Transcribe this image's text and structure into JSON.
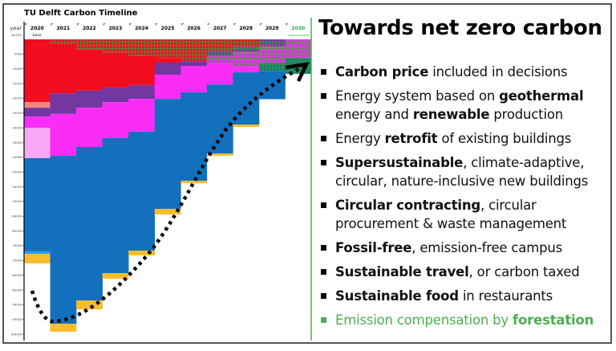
{
  "chart_data": {
    "type": "bar",
    "stacked": true,
    "title": "TU Delft Carbon Timeline",
    "row_labels": {
      "year": "year",
      "source": "source"
    },
    "categories": [
      "2020",
      "2021",
      "2022",
      "2023",
      "2024",
      "2025",
      "2026",
      "2027",
      "2028",
      "2029",
      "2030"
    ],
    "category_colors": [
      "#000000",
      "#000000",
      "#000000",
      "#000000",
      "#000000",
      "#000000",
      "#000000",
      "#000000",
      "#000000",
      "#000000",
      "#2ea84a"
    ],
    "annotations": [
      {
        "category": "2020",
        "text": "base"
      },
      {
        "category": "2030",
        "text": "carbon neutral",
        "color": "#2ea84a"
      }
    ],
    "y_axis": {
      "inverted": true,
      "ylim": [
        0,
        100000
      ],
      "ticks": [
        5000,
        10000,
        15000,
        20000,
        25000,
        30000,
        35000,
        40000,
        45000,
        50000,
        55000,
        60000,
        65000,
        70000,
        75000,
        80000,
        85000,
        90000,
        95000,
        100000
      ]
    },
    "grid": false,
    "series": [
      {
        "color": "#f01020",
        "hatched": true,
        "values": [
          0,
          1600,
          3500,
          4400,
          5500,
          6300,
          7400,
          3800,
          2500,
          0,
          0
        ]
      },
      {
        "color": "#7a3aa0",
        "hatched": true,
        "values": [
          0,
          0,
          0,
          0,
          0,
          0,
          0,
          1900,
          1900,
          2500,
          0
        ]
      },
      {
        "color": "#f030f0",
        "hatched": true,
        "values": [
          0,
          0,
          0,
          0,
          0,
          0,
          0,
          2700,
          4900,
          5500,
          6300
        ]
      },
      {
        "color": "#14807a",
        "hatched": true,
        "values": [
          0,
          0,
          0,
          0,
          0,
          0,
          0,
          0,
          0,
          2700,
          5400
        ]
      },
      {
        "color": "#f20d1e",
        "values": [
          21300,
          16700,
          13900,
          12000,
          10000,
          1600,
          0,
          0,
          0,
          0,
          0
        ]
      },
      {
        "color": "#f4857a",
        "values": [
          1900,
          0,
          0,
          0,
          0,
          0,
          0,
          0,
          0,
          0,
          0
        ]
      },
      {
        "color": "#7436a0",
        "values": [
          3000,
          7000,
          5800,
          4900,
          4700,
          4100,
          1600,
          0,
          0,
          0,
          0
        ]
      },
      {
        "color": "#fa2cf6",
        "values": [
          3800,
          14200,
          13300,
          12200,
          11100,
          8200,
          9000,
          6900,
          1900,
          0,
          0
        ]
      },
      {
        "color": "#f8a8f4",
        "values": [
          10300,
          0,
          0,
          0,
          0,
          0,
          0,
          0,
          0,
          0,
          0
        ]
      },
      {
        "color": "#1270bc",
        "values": [
          31600,
          57000,
          52100,
          45800,
          40400,
          37300,
          30000,
          23400,
          17700,
          9600,
          0
        ]
      },
      {
        "color": "#2c9cf0",
        "values": [
          900,
          0,
          0,
          0,
          0,
          0,
          0,
          0,
          0,
          0,
          0
        ]
      },
      {
        "color": "#fbbd2e",
        "values": [
          3200,
          2700,
          3000,
          1900,
          1600,
          1900,
          800,
          800,
          800,
          0,
          0
        ]
      }
    ],
    "trend_arrow": "dotted curve rising from 2020 to 2030"
  },
  "panel": {
    "title": "Towards net zero carbon",
    "bullets": [
      {
        "bold": "Carbon price",
        "rest": " included in decisions"
      },
      {
        "pre": "Energy system based on ",
        "bold": "geothermal",
        "mid": " energy and ",
        "bold2": "renewable",
        "rest": " production"
      },
      {
        "pre": "Energy ",
        "bold": "retrofit",
        "rest": " of existing buildings"
      },
      {
        "bold": "Supersustainable",
        "rest": ", climate-adaptive, circular, nature-inclusive new buildings"
      },
      {
        "bold": "Circular contracting",
        "rest": ", circular procurement & waste management"
      },
      {
        "bold": "Fossil-free",
        "rest": ", emission-free campus"
      },
      {
        "bold": "Sustainable travel",
        "rest": ", or carbon taxed"
      },
      {
        "bold": "Sustainable food",
        "rest": " in restaurants"
      },
      {
        "pre": "Emission compensation by ",
        "bold": "forestation",
        "green": true
      }
    ],
    "accent": "#4caf50"
  }
}
